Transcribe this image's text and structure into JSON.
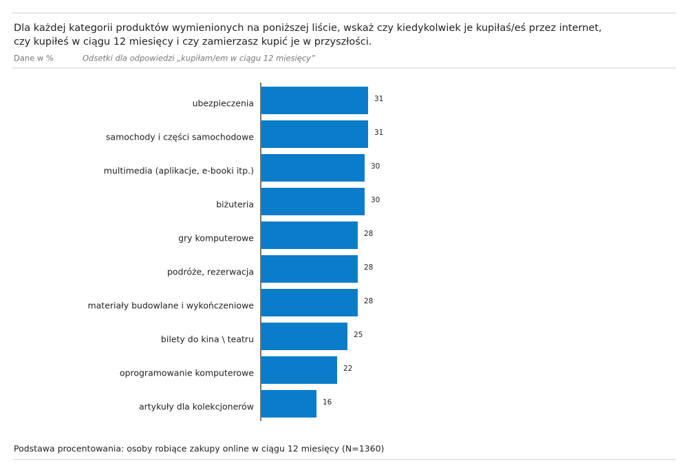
{
  "chart_data": {
    "type": "bar",
    "orientation": "horizontal",
    "title": [
      "Dla każdej kategorii produktów wymienionych na poniższej liście, wskaż czy kiedykolwiek je kupiłaś/eś przez internet,",
      "czy kupiłeś w ciągu 12 miesięcy i czy zamierzasz kupić je w przyszłości."
    ],
    "unit_note": "Dane w %",
    "subtitle": "Odsetki dla odpowiedzi „kupiłam/em w ciągu 12 miesięcy”",
    "categories": [
      "ubezpieczenia",
      "samochody i części samochodowe",
      "multimedia (aplikacje, e-booki itp.)",
      "biżuteria",
      "gry komputerowe",
      "podróże, rezerwacja",
      "materiały budowlane i wykończeniowe",
      "bilety do kina \\ teatru",
      "oprogramowanie komputerowe",
      "artykuły dla kolekcjonerów"
    ],
    "values": [
      31,
      31,
      30,
      30,
      28,
      28,
      28,
      25,
      22,
      16
    ],
    "color": "#0a7cc9",
    "footnote": "Podstawa procentowania: osoby robiące zakupy online w ciągu 12 miesięcy (N=1360)"
  }
}
